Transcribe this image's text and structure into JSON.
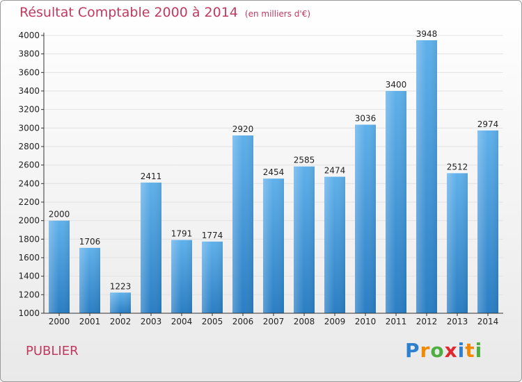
{
  "title": "Résultat Comptable 2000 à 2014",
  "subtitle": "(en milliers d'€)",
  "commune": "PUBLIER",
  "logo": {
    "letters": [
      {
        "ch": "P",
        "color": "#2f7fcf"
      },
      {
        "ch": "r",
        "color": "#f18a00"
      },
      {
        "ch": "o",
        "color": "#4caf3f"
      },
      {
        "ch": "x",
        "color": "#e0282e"
      },
      {
        "ch": "i",
        "color": "#2f7fcf"
      },
      {
        "ch": "t",
        "color": "#f18a00"
      },
      {
        "ch": "i",
        "color": "#4caf3f"
      }
    ]
  },
  "colors": {
    "title": "#c0395e",
    "bar_light": "#5dade8",
    "bar_dark": "#2a7ec3",
    "axis": "#333333",
    "grid": "#dddddd"
  },
  "chart_data": {
    "type": "bar",
    "categories": [
      "2000",
      "2001",
      "2002",
      "2003",
      "2004",
      "2005",
      "2006",
      "2007",
      "2008",
      "2009",
      "2010",
      "2011",
      "2012",
      "2013",
      "2014"
    ],
    "values": [
      2000,
      1706,
      1223,
      2411,
      1791,
      1774,
      2920,
      2454,
      2585,
      2474,
      3036,
      3400,
      3948,
      2512,
      2974
    ],
    "ylim": [
      1000,
      4000
    ],
    "yticks": [
      1000,
      1200,
      1400,
      1600,
      1800,
      2000,
      2200,
      2400,
      2600,
      2800,
      3000,
      3200,
      3400,
      3600,
      3800,
      4000
    ],
    "grid": true,
    "data_labels": true
  }
}
